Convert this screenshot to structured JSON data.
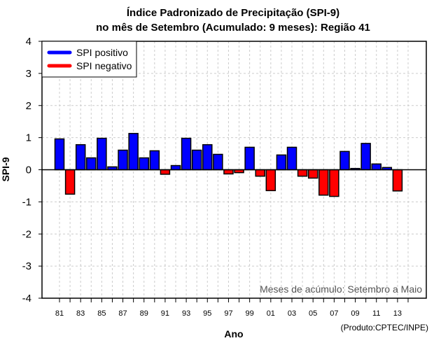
{
  "chart_data": {
    "type": "bar",
    "title": [
      "Índice Padronizado de Precipitação (SPI-9)",
      "no mês de Setembro (Acumulado: 9 meses): Região 41"
    ],
    "xlabel": "Ano",
    "ylabel": "SPI-9",
    "ylim": [
      -4,
      4
    ],
    "yticks": [
      4,
      3,
      2,
      1,
      0,
      -1,
      -2,
      -3,
      -4
    ],
    "grid": true,
    "legend_position": "top-left",
    "legend": [
      {
        "label": "SPI positivo",
        "color": "#0000ff"
      },
      {
        "label": "SPI negativo",
        "color": "#ff0000"
      }
    ],
    "categories": [
      "81",
      "82",
      "83",
      "84",
      "85",
      "86",
      "87",
      "88",
      "89",
      "90",
      "91",
      "92",
      "93",
      "94",
      "95",
      "96",
      "97",
      "98",
      "99",
      "00",
      "01",
      "02",
      "03",
      "04",
      "05",
      "06",
      "07",
      "08",
      "09",
      "10",
      "11",
      "12",
      "13",
      "14"
    ],
    "xtick_labels": [
      "81",
      "83",
      "85",
      "87",
      "89",
      "91",
      "93",
      "95",
      "97",
      "99",
      "01",
      "03",
      "05",
      "07",
      "09",
      "11",
      "13"
    ],
    "values": [
      0.96,
      -0.76,
      0.78,
      0.37,
      0.98,
      0.09,
      0.61,
      1.13,
      0.37,
      0.59,
      -0.14,
      0.13,
      0.98,
      0.61,
      0.78,
      0.48,
      -0.13,
      -0.09,
      0.7,
      -0.2,
      -0.65,
      0.46,
      0.7,
      -0.2,
      -0.26,
      -0.79,
      -0.83,
      0.57,
      0.04,
      0.82,
      0.18,
      0.07,
      -0.66,
      null
    ],
    "colors": {
      "positive": "#0000ff",
      "negative": "#ff0000"
    },
    "annotation": "Meses de acúmulo: Setembro a Maio",
    "credit": "(Produto:CPTEC/INPE)"
  }
}
